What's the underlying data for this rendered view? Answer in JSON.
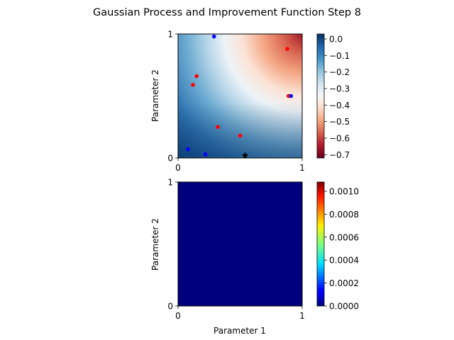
{
  "title": "Gaussian Process and Improvement Function Step 8",
  "chart_data": [
    {
      "type": "heatmap",
      "panel": "top",
      "xlabel": "",
      "ylabel": "Parameter 2",
      "xlim": [
        0,
        1
      ],
      "ylim": [
        0,
        1
      ],
      "xticks": [
        "0",
        "1"
      ],
      "yticks": [
        "0",
        "1"
      ],
      "colormap": "RdBu",
      "colorbar": {
        "range": [
          -0.72,
          0.03
        ],
        "ticks": [
          0.0,
          -0.1,
          -0.2,
          -0.3,
          -0.4,
          -0.5,
          -0.6,
          -0.7
        ],
        "tick_labels": [
          "0.0",
          "−0.1",
          "−0.2",
          "−0.3",
          "−0.4",
          "−0.5",
          "−0.6",
          "−0.7"
        ]
      },
      "points_red": [
        {
          "x": 0.15,
          "y": 0.66
        },
        {
          "x": 0.12,
          "y": 0.59
        },
        {
          "x": 0.32,
          "y": 0.25
        },
        {
          "x": 0.5,
          "y": 0.18
        },
        {
          "x": 0.88,
          "y": 0.88
        },
        {
          "x": 0.89,
          "y": 0.5
        }
      ],
      "points_blue": [
        {
          "x": 0.29,
          "y": 0.98
        },
        {
          "x": 0.91,
          "y": 0.5
        },
        {
          "x": 0.08,
          "y": 0.07
        },
        {
          "x": 0.22,
          "y": 0.03
        }
      ],
      "best_point": {
        "x": 0.54,
        "y": 0.02,
        "marker": "star"
      },
      "colors": {
        "red_points": "#ff0000",
        "blue_points": "#0000ff",
        "star": "#000000"
      }
    },
    {
      "type": "heatmap",
      "panel": "bottom",
      "xlabel": "Parameter 1",
      "ylabel": "Parameter 2",
      "xlim": [
        0,
        1
      ],
      "ylim": [
        0,
        1
      ],
      "xticks": [
        "0",
        "1"
      ],
      "yticks": [
        "0",
        "1"
      ],
      "colormap": "jet",
      "fill_value": 0.0,
      "colorbar": {
        "range": [
          0.0,
          0.00108
        ],
        "ticks": [
          0.0,
          0.0002,
          0.0004,
          0.0006,
          0.0008,
          0.001
        ],
        "tick_labels": [
          "0.0000",
          "0.0002",
          "0.0004",
          "0.0006",
          "0.0008",
          "0.0010"
        ]
      }
    }
  ]
}
